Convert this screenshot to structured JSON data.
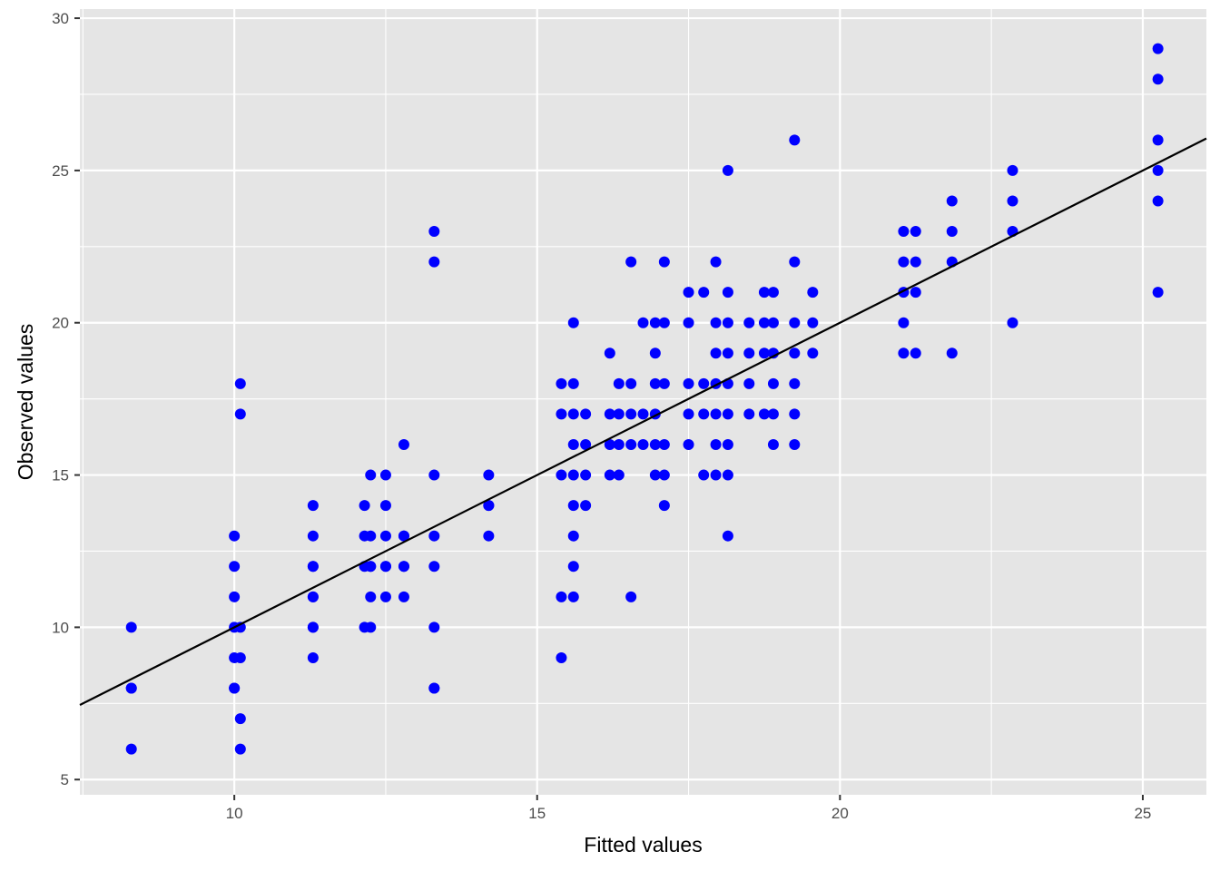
{
  "chart_data": {
    "type": "scatter",
    "title": "",
    "xlabel": "Fitted values",
    "ylabel": "Observed values",
    "xlim": [
      7.45,
      26.05
    ],
    "ylim": [
      4.5,
      30.3
    ],
    "x_ticks": [
      10,
      15,
      20,
      25
    ],
    "y_ticks": [
      5,
      10,
      15,
      20,
      25,
      30
    ],
    "grid": true,
    "legend": "none",
    "colors": {
      "panel_background": "#e5e5e5",
      "grid": "#ffffff",
      "points": "#0000ff",
      "fit_line": "#000000",
      "tick_text": "#4d4d4d"
    },
    "fit_line": {
      "intercept": 0,
      "slope": 1
    },
    "points": [
      [
        8.3,
        10
      ],
      [
        8.3,
        8
      ],
      [
        8.3,
        8
      ],
      [
        8.3,
        6
      ],
      [
        10.0,
        13
      ],
      [
        10.0,
        12
      ],
      [
        10.0,
        11
      ],
      [
        10.0,
        10
      ],
      [
        10.0,
        9
      ],
      [
        10.0,
        8
      ],
      [
        10.0,
        8
      ],
      [
        10.1,
        18
      ],
      [
        10.1,
        17
      ],
      [
        10.1,
        10
      ],
      [
        10.1,
        9
      ],
      [
        10.1,
        7
      ],
      [
        10.1,
        6
      ],
      [
        11.3,
        14
      ],
      [
        11.3,
        13
      ],
      [
        11.3,
        12
      ],
      [
        11.3,
        12
      ],
      [
        11.3,
        11
      ],
      [
        11.3,
        11
      ],
      [
        11.3,
        10
      ],
      [
        11.3,
        10
      ],
      [
        11.3,
        9
      ],
      [
        12.15,
        14
      ],
      [
        12.15,
        13
      ],
      [
        12.15,
        12
      ],
      [
        12.15,
        10
      ],
      [
        12.25,
        15
      ],
      [
        12.25,
        13
      ],
      [
        12.25,
        12
      ],
      [
        12.25,
        12
      ],
      [
        12.25,
        11
      ],
      [
        12.25,
        10
      ],
      [
        12.5,
        15
      ],
      [
        12.5,
        14
      ],
      [
        12.5,
        13
      ],
      [
        12.5,
        12
      ],
      [
        12.5,
        12
      ],
      [
        12.5,
        11
      ],
      [
        12.8,
        16
      ],
      [
        12.8,
        13
      ],
      [
        12.8,
        13
      ],
      [
        12.8,
        12
      ],
      [
        12.8,
        12
      ],
      [
        12.8,
        11
      ],
      [
        13.3,
        23
      ],
      [
        13.3,
        22
      ],
      [
        13.3,
        15
      ],
      [
        13.3,
        13
      ],
      [
        13.3,
        12
      ],
      [
        13.3,
        10
      ],
      [
        13.3,
        8
      ],
      [
        13.3,
        8
      ],
      [
        14.2,
        15
      ],
      [
        14.2,
        14
      ],
      [
        14.2,
        14
      ],
      [
        14.2,
        13
      ],
      [
        15.4,
        18
      ],
      [
        15.4,
        17
      ],
      [
        15.4,
        15
      ],
      [
        15.4,
        11
      ],
      [
        15.4,
        9
      ],
      [
        15.6,
        20
      ],
      [
        15.6,
        18
      ],
      [
        15.6,
        17
      ],
      [
        15.6,
        16
      ],
      [
        15.6,
        15
      ],
      [
        15.6,
        14
      ],
      [
        15.6,
        13
      ],
      [
        15.6,
        12
      ],
      [
        15.6,
        11
      ],
      [
        15.8,
        17
      ],
      [
        15.8,
        16
      ],
      [
        15.8,
        15
      ],
      [
        15.8,
        14
      ],
      [
        16.2,
        19
      ],
      [
        16.2,
        17
      ],
      [
        16.2,
        16
      ],
      [
        16.2,
        15
      ],
      [
        16.35,
        18
      ],
      [
        16.35,
        17
      ],
      [
        16.35,
        16
      ],
      [
        16.35,
        15
      ],
      [
        16.55,
        22
      ],
      [
        16.55,
        18
      ],
      [
        16.55,
        17
      ],
      [
        16.55,
        16
      ],
      [
        16.55,
        11
      ],
      [
        16.75,
        20
      ],
      [
        16.75,
        17
      ],
      [
        16.75,
        16
      ],
      [
        16.95,
        20
      ],
      [
        16.95,
        19
      ],
      [
        16.95,
        18
      ],
      [
        16.95,
        17
      ],
      [
        16.95,
        16
      ],
      [
        16.95,
        15
      ],
      [
        17.1,
        22
      ],
      [
        17.1,
        20
      ],
      [
        17.1,
        18
      ],
      [
        17.1,
        16
      ],
      [
        17.1,
        15
      ],
      [
        17.1,
        14
      ],
      [
        17.5,
        21
      ],
      [
        17.5,
        20
      ],
      [
        17.5,
        18
      ],
      [
        17.5,
        17
      ],
      [
        17.5,
        16
      ],
      [
        17.75,
        21
      ],
      [
        17.75,
        18
      ],
      [
        17.75,
        17
      ],
      [
        17.75,
        15
      ],
      [
        17.95,
        22
      ],
      [
        17.95,
        20
      ],
      [
        17.95,
        19
      ],
      [
        17.95,
        18
      ],
      [
        17.95,
        17
      ],
      [
        17.95,
        16
      ],
      [
        17.95,
        15
      ],
      [
        18.15,
        25
      ],
      [
        18.15,
        21
      ],
      [
        18.15,
        20
      ],
      [
        18.15,
        19
      ],
      [
        18.15,
        18
      ],
      [
        18.15,
        17
      ],
      [
        18.15,
        16
      ],
      [
        18.15,
        15
      ],
      [
        18.15,
        13
      ],
      [
        18.5,
        20
      ],
      [
        18.5,
        19
      ],
      [
        18.5,
        18
      ],
      [
        18.5,
        17
      ],
      [
        18.75,
        21
      ],
      [
        18.75,
        20
      ],
      [
        18.75,
        19
      ],
      [
        18.75,
        17
      ],
      [
        18.9,
        21
      ],
      [
        18.9,
        20
      ],
      [
        18.9,
        19
      ],
      [
        18.9,
        18
      ],
      [
        18.9,
        17
      ],
      [
        18.9,
        16
      ],
      [
        19.25,
        26
      ],
      [
        19.25,
        22
      ],
      [
        19.25,
        20
      ],
      [
        19.25,
        19
      ],
      [
        19.25,
        18
      ],
      [
        19.25,
        17
      ],
      [
        19.25,
        16
      ],
      [
        19.55,
        21
      ],
      [
        19.55,
        20
      ],
      [
        19.55,
        19
      ],
      [
        21.05,
        23
      ],
      [
        21.05,
        22
      ],
      [
        21.05,
        21
      ],
      [
        21.05,
        20
      ],
      [
        21.05,
        19
      ],
      [
        21.25,
        23
      ],
      [
        21.25,
        22
      ],
      [
        21.25,
        21
      ],
      [
        21.25,
        19
      ],
      [
        21.85,
        24
      ],
      [
        21.85,
        23
      ],
      [
        21.85,
        22
      ],
      [
        21.85,
        19
      ],
      [
        22.85,
        25
      ],
      [
        22.85,
        24
      ],
      [
        22.85,
        23
      ],
      [
        22.85,
        20
      ],
      [
        25.25,
        29
      ],
      [
        25.25,
        28
      ],
      [
        25.25,
        26
      ],
      [
        25.25,
        25
      ],
      [
        25.25,
        24
      ],
      [
        25.25,
        21
      ]
    ]
  }
}
